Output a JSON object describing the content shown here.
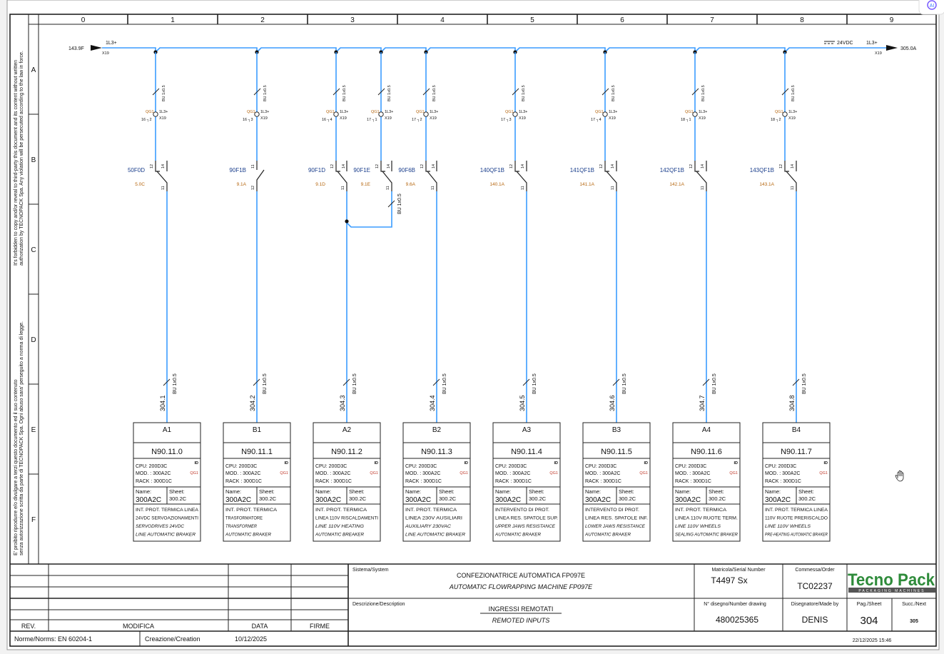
{
  "frame": {
    "columns": [
      "0",
      "1",
      "2",
      "3",
      "4",
      "5",
      "6",
      "7",
      "8",
      "9"
    ],
    "rows": [
      "A",
      "B",
      "C",
      "D",
      "E",
      "F"
    ],
    "legal_en": [
      "It's forbidden to copy and/or reveal to third-party this document and its content without written",
      "authorization by TECNOPACK Spa. Any violation will be persecuted according to the law in force."
    ],
    "legal_it": [
      "E' proibito riprodurre e/o divulgare a terzi questo documento ed il suo contenuto",
      "senza autorizzazione scritta da parte di TECNOPACK Spa. Ogni abuso sara' perseguito a norma di legge."
    ]
  },
  "bus": {
    "from_ref": "143.9F",
    "to_ref": "305.0A",
    "potential": "1L3+",
    "terminal": "X19",
    "voltage": "24VDC",
    "wire_color": "#3b9cff"
  },
  "branches": [
    {
      "terminal_strip": "QG1",
      "term_num": "16",
      "term_idx": "2",
      "pot": "1L3+",
      "x19": "X19",
      "wire": "BU 1x0.5",
      "contact": "50F0D",
      "ref": "5.0C",
      "pins": [
        "12",
        "14",
        "11"
      ],
      "cable": "304.1",
      "module": "A1"
    },
    {
      "terminal_strip": "QG1",
      "term_num": "16",
      "term_idx": "3",
      "pot": "1L3+",
      "x19": "X19",
      "wire": "BU 1x0.5",
      "contact": "90F1B",
      "ref": "9.1A",
      "pins": [
        "11",
        "",
        "12"
      ],
      "cable": "304.2",
      "module": "B1"
    },
    {
      "terminal_strip": "QG1",
      "term_num": "16",
      "term_idx": "4",
      "pot": "1L3+",
      "x19": "X19",
      "wire": "BU 1x0.5",
      "contact": "90F1D",
      "ref": "9.1D",
      "pins": [
        "12",
        "14",
        "11"
      ],
      "cable": "304.3",
      "module": "A2"
    },
    {
      "terminal_strip": "QG1",
      "term_num": "17",
      "term_idx": "1",
      "pot": "1L3+",
      "x19": "X19",
      "wire": "BU 1x0.5",
      "contact": "90F1E",
      "ref": "9.1E",
      "pins": [
        "12",
        "14",
        "11"
      ],
      "cable": "",
      "module": "",
      "jumper_wire": "BU 1x0.5"
    },
    {
      "terminal_strip": "QG1",
      "term_num": "17",
      "term_idx": "2",
      "pot": "1L3+",
      "x19": "X19",
      "wire": "BU 1x0.5",
      "contact": "90F6B",
      "ref": "9.6A",
      "pins": [
        "12",
        "14",
        "11"
      ],
      "cable": "304.4",
      "module": "B2"
    },
    {
      "terminal_strip": "QG1",
      "term_num": "17",
      "term_idx": "3",
      "pot": "1L3+",
      "x19": "X19",
      "wire": "BU 1x0.5",
      "contact": "140QF1B",
      "ref": "140.1A",
      "pins": [
        "12",
        "14",
        "11"
      ],
      "cable": "304.5",
      "module": "A3"
    },
    {
      "terminal_strip": "QG1",
      "term_num": "17",
      "term_idx": "4",
      "pot": "1L3+",
      "x19": "X19",
      "wire": "BU 1x0.5",
      "contact": "141QF1B",
      "ref": "141.1A",
      "pins": [
        "12",
        "14",
        "11"
      ],
      "cable": "304.6",
      "module": "B3"
    },
    {
      "terminal_strip": "QG1",
      "term_num": "18",
      "term_idx": "1",
      "pot": "1L3+",
      "x19": "X19",
      "wire": "BU 1x0.5",
      "contact": "142QF1B",
      "ref": "142.1A",
      "pins": [
        "12",
        "14",
        "11"
      ],
      "cable": "304.7",
      "module": "A4"
    },
    {
      "terminal_strip": "QG1",
      "term_num": "18",
      "term_idx": "2",
      "pot": "1L3+",
      "x19": "X19",
      "wire": "BU 1x0.5",
      "contact": "143QF1B",
      "ref": "143.1A",
      "pins": [
        "12",
        "14",
        "11"
      ],
      "cable": "304.8",
      "module": "B4"
    }
  ],
  "modules": [
    {
      "tag": "A1",
      "address": "N90.11.0",
      "cpu": "CPU:   200D3C",
      "mod": "MOD. : 300A2C",
      "rack": "RACK : 300D1C",
      "id": "ID",
      "qg": "QG1",
      "name_label": "Name:",
      "name": "300A2C",
      "sheet_label": "Sheet:",
      "sheet": "300.2C",
      "desc": [
        "INT. PROT. TERMICA LINEA",
        "24VDC SERVOAZIONAMENTI",
        "SERVODRIVES 24VDC",
        "LINE AUTOMATIC BRAKER"
      ]
    },
    {
      "tag": "B1",
      "address": "N90.11.1",
      "cpu": "CPU:   200D3C",
      "mod": "MOD. : 300A2C",
      "rack": "RACK : 300D1C",
      "id": "ID",
      "qg": "QG1",
      "name_label": "Name:",
      "name": "300A2C",
      "sheet_label": "Sheet:",
      "sheet": "300.2C",
      "desc": [
        "INT. PROT. TERMICA",
        "TRASFORMATORE",
        "TRANSFORMER",
        "AUTOMATIC BRAKER"
      ]
    },
    {
      "tag": "A2",
      "address": "N90.11.2",
      "cpu": "CPU:   200D3C",
      "mod": "MOD. : 300A2C",
      "rack": "RACK : 300D1C",
      "id": "ID",
      "qg": "QG1",
      "name_label": "Name:",
      "name": "300A2C",
      "sheet_label": "Sheet:",
      "sheet": "300.2C",
      "desc": [
        "INT. PROT. TERMICA",
        "LINEA 110V RISCALDAMENTI",
        "LINE 110V HEATING",
        "AUTOMATIC BREAKER"
      ]
    },
    {
      "tag": "B2",
      "address": "N90.11.3",
      "cpu": "CPU:   200D3C",
      "mod": "MOD. : 300A2C",
      "rack": "RACK : 300D1C",
      "id": "ID",
      "qg": "QG1",
      "name_label": "Name:",
      "name": "300A2C",
      "sheet_label": "Sheet:",
      "sheet": "300.2C",
      "desc": [
        "INT. PROT. TERMICA",
        "LINEA 230V AUSILIARI",
        "AUXILIARY 230VAC",
        "LINE AUTOMATIC BRAKER"
      ]
    },
    {
      "tag": "A3",
      "address": "N90.11.4",
      "cpu": "CPU:   200D3C",
      "mod": "MOD. : 300A2C",
      "rack": "RACK : 300D1C",
      "id": "ID",
      "qg": "QG1",
      "name_label": "Name:",
      "name": "300A2C",
      "sheet_label": "Sheet:",
      "sheet": "300.2C",
      "desc": [
        "INTERVENTO DI PROT.",
        "LINEA RES. SPATOLE SUP.",
        "UPPER JAWS RESISTANCE",
        "AUTOMATIC BRAKER"
      ]
    },
    {
      "tag": "B3",
      "address": "N90.11.5",
      "cpu": "CPU:   200D3C",
      "mod": "MOD. : 300A2C",
      "rack": "RACK : 300D1C",
      "id": "ID",
      "qg": "QG1",
      "name_label": "Name:",
      "name": "300A2C",
      "sheet_label": "Sheet:",
      "sheet": "300.2C",
      "desc": [
        "INTERVENTO DI PROT.",
        "LINEA RES. SPATOLE INF.",
        "LOWER JAWS RESISTANCE",
        "AUTOMATIC BRAKER"
      ]
    },
    {
      "tag": "A4",
      "address": "N90.11.6",
      "cpu": "CPU:   200D3C",
      "mod": "MOD. : 300A2C",
      "rack": "RACK : 300D1C",
      "id": "ID",
      "qg": "QG1",
      "name_label": "Name:",
      "name": "300A2C",
      "sheet_label": "Sheet:",
      "sheet": "300.2C",
      "desc": [
        "INT. PROT. TERMICA",
        "LINEA 110V RUOTE TERM.",
        "LINE 110V WHEELS",
        "SEALING AUTOMATIC BRAKER"
      ]
    },
    {
      "tag": "B4",
      "address": "N90.11.7",
      "cpu": "CPU:   200D3C",
      "mod": "MOD. : 300A2C",
      "rack": "RACK : 300D1C",
      "id": "ID",
      "qg": "QG1",
      "name_label": "Name:",
      "name": "300A2C",
      "sheet_label": "Sheet:",
      "sheet": "300.2C",
      "desc": [
        "INT. PROT. TERMICA LINEA",
        "110V RUOTE PRERISCALDO",
        "LINE 110V WHEELS",
        "PRE-HEATING AUTOMATIC BRAKER"
      ]
    }
  ],
  "title_block": {
    "rev_label": "REV.",
    "modifica_label": "MODIFICA",
    "data_label": "DATA",
    "firme_label": "FIRME",
    "norms": "Norme/Norms: EN 60204-1",
    "creation_label": "Creazione/Creation",
    "creation_date": "10/12/2025",
    "system_label": "Sistema/System",
    "system_it": "CONFEZIONATRICE AUTOMATICA FP097E",
    "system_en": "AUTOMATIC FLOWRAPPING MACHINE FP097E",
    "description_label": "Descrizione/Description",
    "description_it": "INGRESSI REMOTATI",
    "description_en": "REMOTED INPUTS",
    "serial_label": "Matricola/Serial Number",
    "serial": "T4497 Sx",
    "order_label": "Commessa/Order",
    "order": "TC02237",
    "drawing_label": "N° disegno/Number drawing",
    "drawing": "480025365",
    "made_by_label": "Disegnatore/Made by",
    "made_by": "DENIS",
    "sheet_label": "Pag./Sheet",
    "sheet": "304",
    "next_label": "Succ./Next",
    "next": "305",
    "timestamp": "22/12/2025 15:46",
    "logo_text": "Tecno Pack",
    "logo_sub": "PACKAGING MACHINES",
    "logo_color": "#2e8b3a"
  },
  "assistant_badge": "AI"
}
